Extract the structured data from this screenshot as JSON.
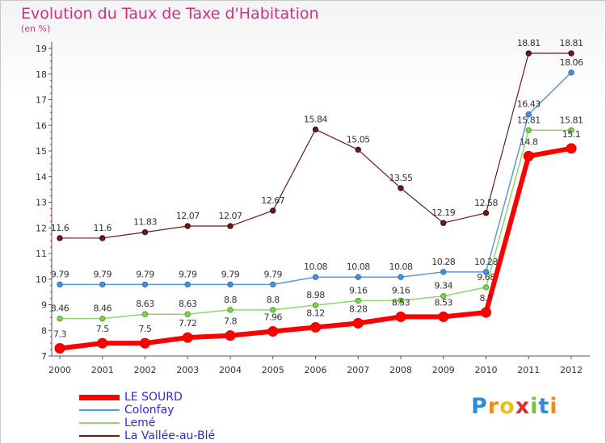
{
  "title": "Evolution du Taux de Taxe d'Habitation",
  "subtitle": "(en %)",
  "logo_text": "Proxiti",
  "chart_data": {
    "type": "line",
    "title": "Evolution du Taux de Taxe d'Habitation",
    "ylabel": "(en %)",
    "xlabel": "",
    "x": [
      "2000",
      "2001",
      "2002",
      "2003",
      "2004",
      "2005",
      "2006",
      "2007",
      "2008",
      "2009",
      "2010",
      "2011",
      "2012"
    ],
    "ylim": [
      7,
      19
    ],
    "yticks": [
      "7",
      "8",
      "9",
      "10",
      "11",
      "12",
      "13",
      "14",
      "15",
      "16",
      "17",
      "18",
      "19"
    ],
    "grid": false,
    "legend_position": "bottom-left",
    "series": [
      {
        "name": "La Vallée-au-Blé",
        "color": "#6b1a1a",
        "values": [
          11.6,
          11.6,
          11.83,
          12.07,
          12.07,
          12.67,
          15.84,
          15.05,
          13.55,
          12.19,
          12.58,
          18.81,
          18.81
        ],
        "labels": [
          "11.6",
          "11.6",
          "11.83",
          "12.07",
          "12.07",
          "12.67",
          "15.84",
          "15.05",
          "13.55",
          "12.19",
          "12.58",
          "18.81",
          "18.81"
        ]
      },
      {
        "name": "Colonfay",
        "color": "#5b9bd5",
        "values": [
          9.79,
          9.79,
          9.79,
          9.79,
          9.79,
          9.79,
          10.08,
          10.08,
          10.08,
          10.28,
          10.28,
          16.43,
          18.06
        ],
        "labels": [
          "9.79",
          "9.79",
          "9.79",
          "9.79",
          "9.79",
          "9.79",
          "10.08",
          "10.08",
          "10.08",
          "10.28",
          "10.28",
          "16.43",
          "18.06"
        ]
      },
      {
        "name": "Lemé",
        "color": "#8fd66b",
        "values": [
          8.46,
          8.46,
          8.63,
          8.63,
          8.8,
          8.8,
          8.98,
          9.16,
          9.16,
          9.34,
          9.68,
          15.81,
          15.81
        ],
        "labels": [
          "8.46",
          "8.46",
          "8.63",
          "8.63",
          "8.8",
          "8.8",
          "8.98",
          "9.16",
          "9.16",
          "9.34",
          "9.68",
          "15.81",
          "15.81"
        ]
      },
      {
        "name": "LE SOURD",
        "color": "#ff0000",
        "values": [
          7.3,
          7.5,
          7.5,
          7.72,
          7.8,
          7.96,
          8.12,
          8.28,
          8.53,
          8.53,
          8.7,
          14.8,
          15.1
        ],
        "labels": [
          "7.3",
          "7.5",
          "7.5",
          "7.72",
          "7.8",
          "7.96",
          "8.12",
          "8.28",
          "8.53",
          "8.53",
          "8.7",
          "14.8",
          "15.1"
        ]
      }
    ]
  },
  "legend": [
    {
      "label": "LE SOURD",
      "color": "#ff0000",
      "thickness": 6
    },
    {
      "label": "Colonfay",
      "color": "#5b9bd5",
      "thickness": 2
    },
    {
      "label": "Lemé",
      "color": "#8fd66b",
      "thickness": 2
    },
    {
      "label": "La Vallée-au-Blé",
      "color": "#6b1a1a",
      "thickness": 2
    }
  ]
}
